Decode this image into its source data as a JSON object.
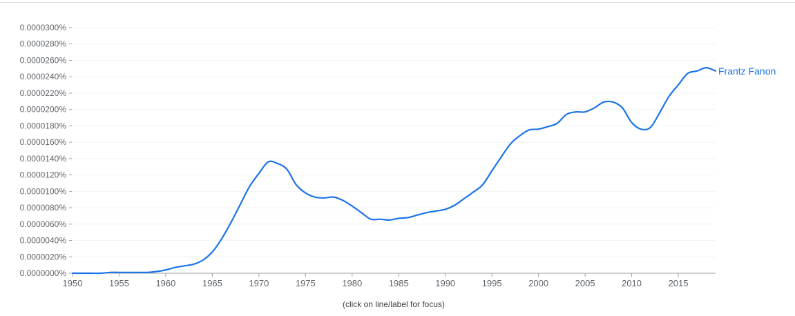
{
  "chart_data": {
    "type": "line",
    "title": "",
    "xlabel": "",
    "ylabel": "",
    "x_ticks": [
      1950,
      1955,
      1960,
      1965,
      1970,
      1975,
      1980,
      1985,
      1990,
      1995,
      2000,
      2005,
      2010,
      2015
    ],
    "x_tick_labels": [
      "1950",
      "1955",
      "1960",
      "1965",
      "1970",
      "1975",
      "1980",
      "1985",
      "1990",
      "1995",
      "2000",
      "2005",
      "2010",
      "2015"
    ],
    "y_ticks": [
      0,
      2e-06,
      4e-06,
      6e-06,
      8e-06,
      1e-05,
      1.2e-05,
      1.4e-05,
      1.6e-05,
      1.8e-05,
      2e-05,
      2.2e-05,
      2.4e-05,
      2.6e-05,
      2.8e-05,
      3e-05
    ],
    "y_tick_labels": [
      "0.0000000%",
      "0.0000020%",
      "0.0000040%",
      "0.0000060%",
      "0.0000080%",
      "0.0000100%",
      "0.0000120%",
      "0.0000140%",
      "0.0000160%",
      "0.0000180%",
      "0.0000200%",
      "0.0000220%",
      "0.0000240%",
      "0.0000260%",
      "0.0000280%",
      "0.0000300%"
    ],
    "xlim": [
      1950,
      2019
    ],
    "ylim": [
      0,
      3e-05
    ],
    "y_unit": "percent",
    "grid": true,
    "legend_position": "inline-end-of-line",
    "x": [
      1950,
      1951,
      1952,
      1953,
      1954,
      1955,
      1956,
      1957,
      1958,
      1959,
      1960,
      1961,
      1962,
      1963,
      1964,
      1965,
      1966,
      1967,
      1968,
      1969,
      1970,
      1971,
      1972,
      1973,
      1974,
      1975,
      1976,
      1977,
      1978,
      1979,
      1980,
      1981,
      1982,
      1983,
      1984,
      1985,
      1986,
      1987,
      1988,
      1989,
      1990,
      1991,
      1992,
      1993,
      1994,
      1995,
      1996,
      1997,
      1998,
      1999,
      2000,
      2001,
      2002,
      2003,
      2004,
      2005,
      2006,
      2007,
      2008,
      2009,
      2010,
      2011,
      2012,
      2013,
      2014,
      2015,
      2016,
      2017,
      2018,
      2019
    ],
    "series": [
      {
        "name": "Frantz Fanon",
        "color": "#1a73e8",
        "values": [
          0.0,
          0.0,
          0.0,
          0.0,
          1e-07,
          1e-07,
          1e-07,
          1e-07,
          1e-07,
          2e-07,
          4e-07,
          7e-07,
          9e-07,
          1.1e-06,
          1.6e-06,
          2.6e-06,
          4.2e-06,
          6.2e-06,
          8.4e-06,
          1.06e-05,
          1.22e-05,
          1.36e-05,
          1.34e-05,
          1.27e-05,
          1.08e-05,
          9.8e-06,
          9.3e-06,
          9.2e-06,
          9.3e-06,
          8.9e-06,
          8.2e-06,
          7.4e-06,
          6.6e-06,
          6.6e-06,
          6.5e-06,
          6.7e-06,
          6.8e-06,
          7.1e-06,
          7.4e-06,
          7.6e-06,
          7.8e-06,
          8.3e-06,
          9.1e-06,
          9.9e-06,
          1.08e-05,
          1.25e-05,
          1.42e-05,
          1.58e-05,
          1.68e-05,
          1.75e-05,
          1.76e-05,
          1.79e-05,
          1.83e-05,
          1.94e-05,
          1.97e-05,
          1.97e-05,
          2.02e-05,
          2.09e-05,
          2.09e-05,
          2.02e-05,
          1.84e-05,
          1.76e-05,
          1.78e-05,
          1.96e-05,
          2.16e-05,
          2.3e-05,
          2.44e-05,
          2.47e-05,
          2.51e-05,
          2.47e-05
        ]
      }
    ]
  },
  "series_label": "Frantz Fanon",
  "footer_hint": "(click on line/label for focus)",
  "colors": {
    "line": "#1a73e8",
    "axis_text": "#5f6368",
    "grid": "#f1f3f4",
    "axis": "#9aa0a6"
  }
}
